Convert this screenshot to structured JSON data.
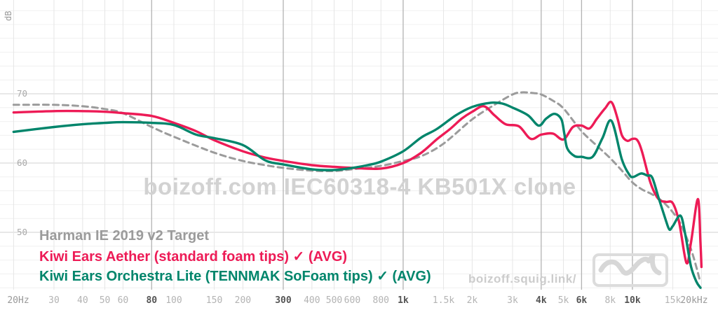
{
  "chart_data": {
    "type": "line",
    "watermark": "boizoff.com IEC60318-4 KB501X clone",
    "site_link": "boizoff.squig.link/",
    "ylabel": "dB",
    "x_scale": "log",
    "xlim": [
      20,
      20000
    ],
    "ylim": [
      42,
      82
    ],
    "grid": {
      "h_step_db": 2,
      "h_major_db": [
        70,
        60,
        50
      ],
      "grid_on": true,
      "legend_position": "bottom-left"
    },
    "y_ticks": [
      70,
      60,
      50
    ],
    "x_ticks": [
      {
        "f": 20,
        "label": "20Hz",
        "major": false,
        "edge": true
      },
      {
        "f": 30,
        "label": "30",
        "major": false
      },
      {
        "f": 40,
        "label": "40",
        "major": false
      },
      {
        "f": 50,
        "label": "50",
        "major": false
      },
      {
        "f": 60,
        "label": "60",
        "major": false
      },
      {
        "f": 80,
        "label": "80",
        "major": true
      },
      {
        "f": 100,
        "label": "100",
        "major": false
      },
      {
        "f": 150,
        "label": "150",
        "major": false
      },
      {
        "f": 200,
        "label": "200",
        "major": false
      },
      {
        "f": 300,
        "label": "300",
        "major": true
      },
      {
        "f": 400,
        "label": "400",
        "major": false
      },
      {
        "f": 500,
        "label": "500",
        "major": false
      },
      {
        "f": 600,
        "label": "600",
        "major": false
      },
      {
        "f": 800,
        "label": "800",
        "major": false
      },
      {
        "f": 1000,
        "label": "1k",
        "major": true
      },
      {
        "f": 1500,
        "label": "1.5k",
        "major": false
      },
      {
        "f": 2000,
        "label": "2k",
        "major": false
      },
      {
        "f": 3000,
        "label": "3k",
        "major": false
      },
      {
        "f": 4000,
        "label": "4k",
        "major": true
      },
      {
        "f": 5000,
        "label": "5k",
        "major": false
      },
      {
        "f": 6000,
        "label": "6k",
        "major": true
      },
      {
        "f": 8000,
        "label": "8k",
        "major": false
      },
      {
        "f": 10000,
        "label": "10k",
        "major": true
      },
      {
        "f": 15000,
        "label": "15k",
        "major": false
      },
      {
        "f": 20000,
        "label": "20kHz",
        "major": false,
        "edge": true
      }
    ],
    "series": [
      {
        "name": "Harman IE 2019 v2 Target",
        "color": "#9b9b9b",
        "style": "dashed",
        "points": [
          [
            20,
            68.4
          ],
          [
            30,
            68.4
          ],
          [
            40,
            68.2
          ],
          [
            50,
            67.8
          ],
          [
            60,
            67.2
          ],
          [
            80,
            65.2
          ],
          [
            100,
            63.8
          ],
          [
            150,
            61.5
          ],
          [
            200,
            60.3
          ],
          [
            250,
            59.7
          ],
          [
            300,
            59.3
          ],
          [
            400,
            58.9
          ],
          [
            500,
            58.85
          ],
          [
            600,
            59.1
          ],
          [
            800,
            59.6
          ],
          [
            1000,
            60.3
          ],
          [
            1200,
            61.0
          ],
          [
            1500,
            62.8
          ],
          [
            2000,
            66.3
          ],
          [
            2500,
            68.4
          ],
          [
            3000,
            69.9
          ],
          [
            3300,
            70.2
          ],
          [
            3700,
            70.1
          ],
          [
            4000,
            69.9
          ],
          [
            4500,
            69.0
          ],
          [
            5000,
            67.9
          ],
          [
            6000,
            64.6
          ],
          [
            7000,
            62.5
          ],
          [
            8000,
            60.7
          ],
          [
            9000,
            58.9
          ],
          [
            10000,
            57.2
          ],
          [
            11000,
            56.2
          ],
          [
            12000,
            55.6
          ],
          [
            13000,
            54.9
          ],
          [
            14000,
            54.0
          ],
          [
            15000,
            52.9
          ],
          [
            16000,
            51.6
          ],
          [
            17000,
            49.7
          ],
          [
            18000,
            47.6
          ],
          [
            19000,
            45.0
          ],
          [
            19600,
            43.3
          ]
        ]
      },
      {
        "name": "Kiwi Ears Aether (standard foam tips) ✓ (AVG)",
        "color": "#ed1b56",
        "style": "solid",
        "points": [
          [
            20,
            67.3
          ],
          [
            30,
            67.5
          ],
          [
            40,
            67.5
          ],
          [
            50,
            67.4
          ],
          [
            60,
            67.2
          ],
          [
            80,
            66.8
          ],
          [
            100,
            65.8
          ],
          [
            125,
            64.6
          ],
          [
            150,
            63.3
          ],
          [
            200,
            61.7
          ],
          [
            250,
            60.8
          ],
          [
            300,
            60.3
          ],
          [
            400,
            59.7
          ],
          [
            500,
            59.45
          ],
          [
            600,
            59.3
          ],
          [
            800,
            59.2
          ],
          [
            1000,
            60.0
          ],
          [
            1200,
            61.5
          ],
          [
            1400,
            63.4
          ],
          [
            1600,
            64.9
          ],
          [
            1800,
            66.4
          ],
          [
            2000,
            67.4
          ],
          [
            2250,
            68.2
          ],
          [
            2500,
            66.9
          ],
          [
            2800,
            65.6
          ],
          [
            3200,
            65.3
          ],
          [
            3600,
            63.5
          ],
          [
            4000,
            64.1
          ],
          [
            4500,
            64.25
          ],
          [
            5000,
            63.4
          ],
          [
            5500,
            65.2
          ],
          [
            6000,
            65.4
          ],
          [
            6500,
            65.0
          ],
          [
            7000,
            66.4
          ],
          [
            7600,
            67.9
          ],
          [
            8100,
            68.8
          ],
          [
            8600,
            66.5
          ],
          [
            9000,
            64.0
          ],
          [
            9500,
            63.2
          ],
          [
            10000,
            63.5
          ],
          [
            10500,
            63.3
          ],
          [
            11000,
            61.7
          ],
          [
            12000,
            57.1
          ],
          [
            13000,
            54.8
          ],
          [
            14000,
            54.4
          ],
          [
            15000,
            54.2
          ],
          [
            16000,
            51.4
          ],
          [
            17200,
            45.6
          ],
          [
            18000,
            48.5
          ],
          [
            19300,
            54.8
          ],
          [
            19800,
            48.5
          ],
          [
            20000,
            45.0
          ]
        ]
      },
      {
        "name": "Kiwi Ears Orchestra Lite (TENNMAK SoFoam tips) ✓ (AVG)",
        "color": "#00856b",
        "style": "solid",
        "points": [
          [
            20,
            64.5
          ],
          [
            30,
            65.2
          ],
          [
            40,
            65.6
          ],
          [
            50,
            65.8
          ],
          [
            60,
            65.9
          ],
          [
            80,
            65.8
          ],
          [
            100,
            65.5
          ],
          [
            125,
            64.1
          ],
          [
            150,
            63.6
          ],
          [
            200,
            62.6
          ],
          [
            250,
            60.4
          ],
          [
            300,
            59.8
          ],
          [
            400,
            59.1
          ],
          [
            500,
            59.0
          ],
          [
            600,
            59.3
          ],
          [
            700,
            59.7
          ],
          [
            800,
            60.2
          ],
          [
            1000,
            61.7
          ],
          [
            1200,
            63.7
          ],
          [
            1400,
            64.9
          ],
          [
            1700,
            66.9
          ],
          [
            2000,
            68.1
          ],
          [
            2400,
            68.7
          ],
          [
            2700,
            68.6
          ],
          [
            3000,
            68.0
          ],
          [
            3500,
            66.9
          ],
          [
            3900,
            65.4
          ],
          [
            4200,
            66.4
          ],
          [
            4570,
            67.1
          ],
          [
            4900,
            66.3
          ],
          [
            5050,
            64.2
          ],
          [
            5200,
            62.1
          ],
          [
            5600,
            61.0
          ],
          [
            6000,
            60.9
          ],
          [
            6700,
            60.9
          ],
          [
            7400,
            63.6
          ],
          [
            8100,
            66.1
          ],
          [
            9000,
            60.5
          ],
          [
            9700,
            58.3
          ],
          [
            10100,
            58.0
          ],
          [
            10900,
            58.5
          ],
          [
            11600,
            58.2
          ],
          [
            12200,
            57.9
          ],
          [
            13000,
            55.0
          ],
          [
            14000,
            51.7
          ],
          [
            14500,
            50.4
          ],
          [
            15000,
            50.9
          ],
          [
            16200,
            52.4
          ],
          [
            17000,
            49.7
          ],
          [
            18000,
            45.1
          ],
          [
            19000,
            42.9
          ],
          [
            19800,
            42.0
          ]
        ]
      }
    ],
    "style_hints": {
      "minor_h_grid": "#f0f0f0",
      "major_h_grid": "#dadada",
      "minor_v_grid": "#e6e6e6",
      "major_v_grid": "#b3b3b3",
      "minor_tick_label": "#b3b3b3",
      "major_tick_label": "#555555",
      "edge_tick_label": "#999999",
      "y_tick_label": "#aaaaaa",
      "watermark_color": "#d2d2d2",
      "logo_color": "#d9d9d9"
    }
  }
}
